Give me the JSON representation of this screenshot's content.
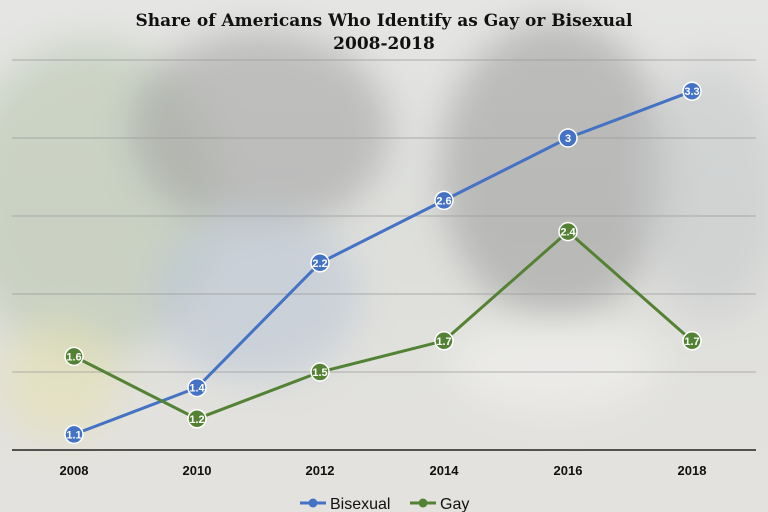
{
  "chart_data": {
    "type": "line",
    "title": "Share of Americans Who Identify as Gay or Bisexual",
    "subtitle": "2008-2018",
    "categories": [
      "2008",
      "2010",
      "2012",
      "2014",
      "2016",
      "2018"
    ],
    "series": [
      {
        "name": "Bisexual",
        "color": "#4472c4",
        "values": [
          1.1,
          1.4,
          2.2,
          2.6,
          3.0,
          3.3
        ],
        "labels": [
          "1.1",
          "1.4",
          "2.2",
          "2.6",
          "3",
          "3.3"
        ]
      },
      {
        "name": "Gay",
        "color": "#548235",
        "values": [
          1.6,
          1.2,
          1.5,
          1.7,
          2.4,
          1.7
        ],
        "labels": [
          "1.6",
          "1.2",
          "1.5",
          "1.7",
          "2.4",
          "1.7"
        ]
      }
    ],
    "ylim": [
      1.0,
      3.5
    ],
    "grid": true,
    "legend_position": "bottom",
    "data_labels": true
  }
}
